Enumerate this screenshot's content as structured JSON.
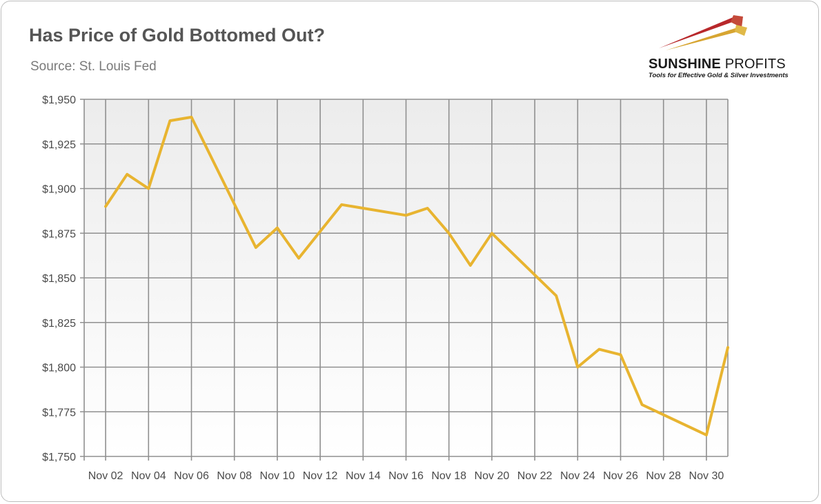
{
  "header": {
    "title": "Has Price of Gold Bottomed Out?",
    "subtitle": "Source: St. Louis Fed"
  },
  "logo": {
    "name_bold": "SUNSHINE",
    "name_light": "PROFITS",
    "tagline": "Tools for Effective Gold & Silver Investments"
  },
  "chart_data": {
    "type": "line",
    "title": "Has Price of Gold Bottomed Out?",
    "subtitle": "Source: St. Louis Fed",
    "xlabel": "",
    "ylabel": "",
    "x": [
      "Nov 02",
      "Nov 03",
      "Nov 04",
      "Nov 05",
      "Nov 06",
      "Nov 09",
      "Nov 10",
      "Nov 11",
      "Nov 13",
      "Nov 16",
      "Nov 17",
      "Nov 18",
      "Nov 19",
      "Nov 20",
      "Nov 23",
      "Nov 24",
      "Nov 25",
      "Nov 26",
      "Nov 27",
      "Nov 30",
      "Dec 01"
    ],
    "x_day_index": [
      2,
      3,
      4,
      5,
      6,
      9,
      10,
      11,
      13,
      16,
      17,
      18,
      19,
      20,
      23,
      24,
      25,
      26,
      27,
      30,
      31
    ],
    "series": [
      {
        "values": [
          1890,
          1908,
          1900,
          1938,
          1940,
          1867,
          1878,
          1861,
          1891,
          1885,
          1889,
          1875,
          1857,
          1875,
          1840,
          1800,
          1810,
          1807,
          1779,
          1762,
          1811
        ]
      }
    ],
    "x_tick_labels": [
      "Nov 02",
      "Nov 04",
      "Nov 06",
      "Nov 08",
      "Nov 10",
      "Nov 12",
      "Nov 14",
      "Nov 16",
      "Nov 18",
      "Nov 20",
      "Nov 22",
      "Nov 24",
      "Nov 26",
      "Nov 28",
      "Nov 30"
    ],
    "x_tick_day_index": [
      2,
      4,
      6,
      8,
      10,
      12,
      14,
      16,
      18,
      20,
      22,
      24,
      26,
      28,
      30
    ],
    "x_range_day_index": [
      1,
      31
    ],
    "y_ticks": [
      1750,
      1775,
      1800,
      1825,
      1850,
      1875,
      1900,
      1925,
      1950
    ],
    "y_tick_labels": [
      "$1,750",
      "$1,775",
      "$1,800",
      "$1,825",
      "$1,850",
      "$1,875",
      "$1,900",
      "$1,925",
      "$1,950"
    ],
    "ylim": [
      1750,
      1950
    ],
    "grid": true,
    "legend": "none",
    "line_color": "#e8b430",
    "grid_color": "#8f8f8f",
    "plot_background_top": "#ececec",
    "plot_background_bottom": "#ffffff"
  }
}
